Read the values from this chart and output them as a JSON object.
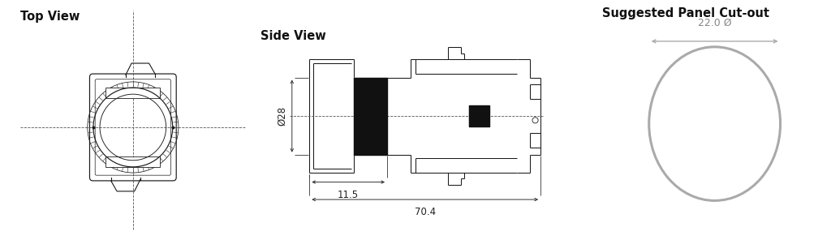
{
  "title_top_view": "Top View",
  "title_side_view": "Side View",
  "title_panel_cutout": "Suggested Panel Cut-out",
  "dim_diameter": "22.0 Ø",
  "dim_28": "Ø28",
  "dim_11_5": "11.5",
  "dim_70_4": "70.4",
  "line_color": "#1a1a1a",
  "dim_line_color": "#333333",
  "circle_gray": "#aaaaaa",
  "bg_color": "#ffffff",
  "title_fontsize": 10.5,
  "dim_fontsize": 8.5
}
